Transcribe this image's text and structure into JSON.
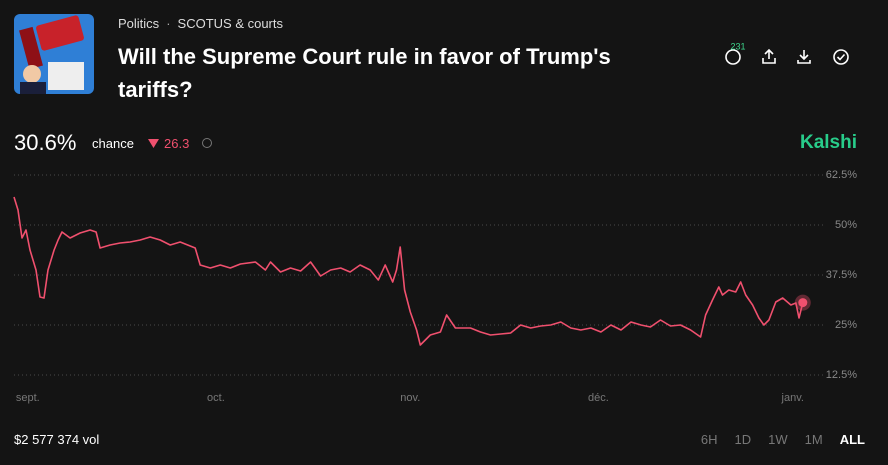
{
  "header": {
    "category": "Politics",
    "subcategory": "SCOTUS & courts",
    "title": "Will the Supreme Court rule in favor of Trump's tariffs?",
    "comments": 231
  },
  "summary": {
    "chance": "30.6%",
    "chance_label": "chance",
    "change": 26.3,
    "brand": "Kalshi"
  },
  "chart_data": {
    "type": "line",
    "x": [
      -2.2,
      -1.56,
      -0.92,
      -0.28,
      0.35,
      1.31,
      1.95,
      2.59,
      3.23,
      4.19,
      4.83,
      5.46,
      6.74,
      8.34,
      9.93,
      10.89,
      11.53,
      13.13,
      14.72,
      16.32,
      17.92,
      19.51,
      21.11,
      22.71,
      24.3,
      26.7,
      27.5,
      29.1,
      30.7,
      32.3,
      33.9,
      36.3,
      37.9,
      38.7,
      40.3,
      41.9,
      43.5,
      45.1,
      46.7,
      48.3,
      49.9,
      51.4,
      53.0,
      54.6,
      55.9,
      57.0,
      58.2,
      58.8,
      59.4,
      60.1,
      61.0,
      62.0,
      62.6,
      64.2,
      65.8,
      66.8,
      68.2,
      70.6,
      72.2,
      73.8,
      75.4,
      77.0,
      78.6,
      80.2,
      81.8,
      83.4,
      85.0,
      86.6,
      88.2,
      89.8,
      91.4,
      93.0,
      94.6,
      96.2,
      97.8,
      99.3,
      100.9,
      102.5,
      104.1,
      105.7,
      107.3,
      108.1,
      109.2,
      110.2,
      110.8,
      111.8,
      112.9,
      113.7,
      114.5,
      115.6,
      116.6,
      117.4,
      118.2,
      119.3,
      120.4,
      121.7,
      122.5,
      123.0,
      123.6
    ],
    "series": [
      {
        "color": "#f0506e",
        "values": [
          57,
          53.75,
          46.75,
          48.75,
          43.75,
          38.75,
          32,
          31.75,
          38.75,
          43.75,
          46.25,
          48.25,
          46.75,
          48,
          48.75,
          48.25,
          44.25,
          45,
          45.5,
          45.75,
          46.25,
          47,
          46.25,
          45,
          45.75,
          44.25,
          40,
          39.25,
          40,
          39.25,
          40.25,
          40.75,
          38.75,
          40.75,
          38.25,
          39.25,
          38.5,
          40.75,
          37.25,
          38.75,
          39.25,
          38.25,
          40,
          38.75,
          36.25,
          40,
          35.75,
          38.75,
          44.5,
          33.75,
          28.25,
          23.75,
          20,
          22.5,
          23.25,
          27.5,
          24.25,
          24.25,
          23.25,
          22.5,
          22.75,
          23,
          25,
          24.25,
          24.75,
          25,
          25.75,
          24.25,
          23.75,
          24.25,
          23.25,
          25,
          23.75,
          25.75,
          25,
          24.5,
          26.25,
          24.75,
          25,
          23.75,
          22,
          27.5,
          31.25,
          34.5,
          32.5,
          33.75,
          33.25,
          35.75,
          32.5,
          30,
          26.75,
          25,
          26.25,
          30.75,
          31.75,
          30,
          30.5,
          26.75,
          30.6
        ]
      }
    ],
    "xlim": [
      -2.2,
      127.3
    ],
    "xticks": [
      {
        "value": 0,
        "label": "sept."
      },
      {
        "value": 30,
        "label": "oct."
      },
      {
        "value": 61,
        "label": "nov."
      },
      {
        "value": 91,
        "label": "déc."
      },
      {
        "value": 122,
        "label": "janv."
      }
    ],
    "ylim": [
      12.5,
      62.5
    ],
    "yticks": [
      {
        "value": 62.5,
        "label": "62.5%"
      },
      {
        "value": 50,
        "label": "50%"
      },
      {
        "value": 37.5,
        "label": "37.5%"
      },
      {
        "value": 25,
        "label": "25%"
      },
      {
        "value": 12.5,
        "label": "12.5%"
      }
    ],
    "grid": true
  },
  "footer": {
    "volume": "$2 577 374 vol",
    "ranges": [
      "6H",
      "1D",
      "1W",
      "1M",
      "ALL"
    ],
    "selected": "ALL"
  }
}
